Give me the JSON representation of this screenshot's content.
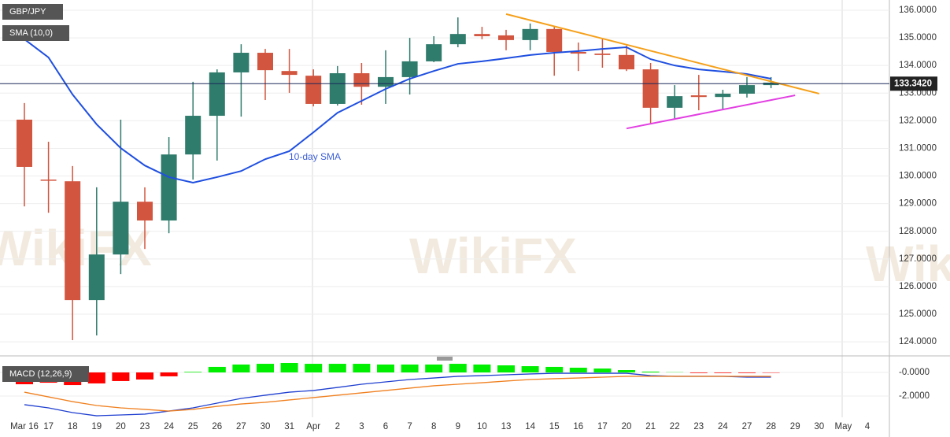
{
  "chart_data": [
    {
      "type": "candlestick",
      "title": "GBP/JPY",
      "categories": [
        "Mar 16",
        "17",
        "18",
        "19",
        "20",
        "23",
        "24",
        "25",
        "26",
        "27",
        "30",
        "31",
        "Apr",
        "2",
        "3",
        "6",
        "7",
        "8",
        "9",
        "10",
        "13",
        "14",
        "15",
        "16",
        "17",
        "20",
        "21",
        "22",
        "23",
        "24",
        "27",
        "28",
        "29",
        "30",
        "May",
        "4"
      ],
      "open": [
        132.04,
        129.87,
        129.81,
        125.51,
        127.16,
        129.07,
        128.39,
        130.78,
        132.18,
        133.75,
        134.46,
        133.8,
        133.63,
        132.61,
        133.72,
        133.23,
        133.58,
        134.15,
        134.77,
        135.14,
        135.09,
        134.92,
        135.32,
        134.49,
        134.43,
        134.38,
        133.86,
        132.47,
        132.92,
        132.86,
        132.98,
        133.29,
        null,
        null,
        null,
        null
      ],
      "high": [
        132.64,
        131.24,
        130.36,
        129.59,
        132.04,
        129.59,
        131.41,
        133.41,
        133.86,
        134.77,
        134.6,
        134.6,
        133.86,
        133.98,
        134.09,
        134.55,
        135.0,
        135.06,
        135.74,
        135.4,
        135.29,
        135.52,
        135.4,
        134.83,
        134.95,
        134.72,
        134.09,
        133.29,
        133.66,
        133.12,
        133.58,
        133.58,
        null,
        null,
        null,
        null
      ],
      "low": [
        128.9,
        128.67,
        124.06,
        124.23,
        126.45,
        127.36,
        127.93,
        129.87,
        130.56,
        132.15,
        132.75,
        133.01,
        132.52,
        132.55,
        132.58,
        132.61,
        132.95,
        134.12,
        134.66,
        134.95,
        134.55,
        134.55,
        133.63,
        133.8,
        133.92,
        133.8,
        131.87,
        132.04,
        132.38,
        132.38,
        132.84,
        133.18,
        null,
        null,
        null,
        null
      ],
      "close": [
        130.33,
        129.83,
        125.51,
        127.16,
        129.07,
        128.39,
        130.78,
        132.18,
        133.75,
        134.46,
        133.83,
        133.66,
        132.61,
        133.72,
        133.23,
        133.58,
        134.15,
        134.77,
        135.14,
        135.06,
        134.92,
        135.32,
        134.49,
        134.43,
        134.38,
        133.86,
        132.47,
        132.89,
        132.86,
        132.98,
        133.29,
        133.38,
        null,
        null,
        null,
        null
      ],
      "up_color": "#2f7b6c",
      "down_color": "#d2553f",
      "series": [
        {
          "name": "SMA (10,0)",
          "color": "#1f4fe0",
          "values": [
            134.95,
            134.29,
            132.95,
            131.87,
            131.01,
            130.38,
            129.96,
            129.76,
            129.96,
            130.18,
            130.61,
            130.9,
            131.58,
            132.29,
            132.72,
            133.15,
            133.52,
            133.8,
            134.06,
            134.15,
            134.26,
            134.38,
            134.46,
            134.52,
            134.6,
            134.66,
            134.23,
            134.0,
            133.86,
            133.78,
            133.69,
            133.52,
            null,
            null,
            null,
            null
          ]
        }
      ],
      "annotation": "10-day SMA",
      "trendlines": [
        {
          "color": "#f5a01a",
          "x": [
            20,
            33
          ],
          "values": [
            135.86,
            132.98
          ]
        },
        {
          "color": "#e23fe2",
          "x": [
            25,
            32
          ],
          "values": [
            131.72,
            132.92
          ]
        }
      ],
      "last_price": {
        "value": 133.342,
        "label": "133.3420"
      },
      "ylim": [
        123.49,
        136.37
      ],
      "yticks": [
        {
          "value": 124,
          "label": "124.0000"
        },
        {
          "value": 125,
          "label": "125.0000"
        },
        {
          "value": 126,
          "label": "126.0000"
        },
        {
          "value": 127,
          "label": "127.0000"
        },
        {
          "value": 128,
          "label": "128.0000"
        },
        {
          "value": 129,
          "label": "129.0000"
        },
        {
          "value": 130,
          "label": "130.0000"
        },
        {
          "value": 131,
          "label": "131.0000"
        },
        {
          "value": 132,
          "label": "132.0000"
        },
        {
          "value": 133,
          "label": "133.0000"
        },
        {
          "value": 134,
          "label": "134.0000"
        },
        {
          "value": 135,
          "label": "135.0000"
        },
        {
          "value": 136,
          "label": "136.0000"
        }
      ],
      "grid": true,
      "watermark": "WikiFX"
    },
    {
      "type": "macd",
      "title": "MACD (12,26,9)",
      "histogram": [
        -1.0,
        -0.87,
        -1.07,
        -0.93,
        -0.73,
        -0.6,
        -0.33,
        0.05,
        0.47,
        0.67,
        0.73,
        0.8,
        0.73,
        0.73,
        0.73,
        0.67,
        0.67,
        0.67,
        0.73,
        0.67,
        0.6,
        0.53,
        0.47,
        0.4,
        0.33,
        0.2,
        0.07,
        0.02,
        -0.05,
        -0.05,
        -0.05,
        -0.03,
        null,
        null,
        null,
        null
      ],
      "positive_color": "#00ee00",
      "negative_color": "#ff0000",
      "series": [
        {
          "color": "#1f3fd0",
          "values": [
            -2.73,
            -3.0,
            -3.4,
            -3.67,
            -3.6,
            -3.53,
            -3.27,
            -3.0,
            -2.6,
            -2.2,
            -1.93,
            -1.67,
            -1.53,
            -1.27,
            -1.0,
            -0.8,
            -0.6,
            -0.47,
            -0.33,
            -0.27,
            -0.2,
            -0.13,
            -0.07,
            -0.07,
            -0.07,
            -0.07,
            -0.27,
            -0.33,
            -0.33,
            -0.33,
            -0.4,
            -0.4,
            null,
            null,
            null,
            null
          ]
        },
        {
          "color": "#f08020",
          "values": [
            -1.67,
            -2.07,
            -2.47,
            -2.8,
            -3.0,
            -3.13,
            -3.27,
            -3.13,
            -2.87,
            -2.67,
            -2.53,
            -2.33,
            -2.13,
            -1.93,
            -1.73,
            -1.53,
            -1.33,
            -1.13,
            -1.0,
            -0.87,
            -0.73,
            -0.6,
            -0.53,
            -0.47,
            -0.4,
            -0.33,
            -0.33,
            -0.33,
            -0.33,
            -0.33,
            -0.33,
            -0.33,
            null,
            null,
            null,
            null
          ]
        }
      ],
      "ylim": [
        -3.8,
        1.0
      ],
      "yticks": [
        {
          "value": 0,
          "label": "-0.0000"
        },
        {
          "value": -2,
          "label": "-2.0000"
        }
      ]
    }
  ]
}
